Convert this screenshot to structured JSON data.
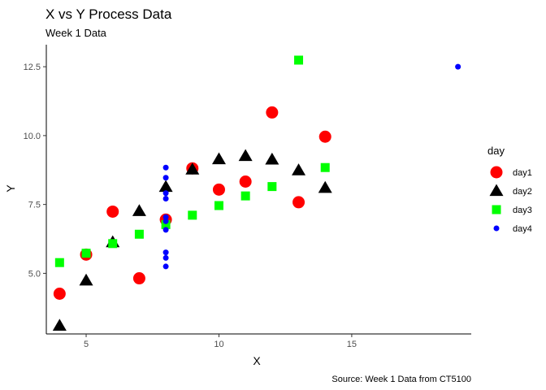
{
  "chart_data": {
    "type": "scatter",
    "title": "X vs Y Process Data",
    "subtitle": "Week 1 Data",
    "caption": "Source: Week 1 Data from CT5100",
    "xlabel": "X",
    "ylabel": "Y",
    "xlim": [
      3.5,
      19.5
    ],
    "ylim": [
      2.8,
      13.3
    ],
    "xticks": [
      5,
      10,
      15
    ],
    "yticks": [
      5.0,
      7.5,
      10.0,
      12.5
    ],
    "xtick_labels": [
      "5",
      "10",
      "15"
    ],
    "ytick_labels": [
      "5.0",
      "7.5",
      "10.0",
      "12.5"
    ],
    "grid": false,
    "legend": {
      "title": "day",
      "position": "right"
    },
    "series": [
      {
        "name": "day1",
        "shape": "circle",
        "color": "#ff0000",
        "x": [
          10,
          8,
          13,
          9,
          11,
          14,
          6,
          4,
          12,
          7,
          5
        ],
        "y": [
          8.04,
          6.95,
          7.58,
          8.81,
          8.33,
          9.96,
          7.24,
          4.26,
          10.84,
          4.82,
          5.68
        ]
      },
      {
        "name": "day2",
        "shape": "triangle",
        "color": "#000000",
        "x": [
          10,
          8,
          13,
          9,
          11,
          14,
          6,
          4,
          12,
          7,
          5
        ],
        "y": [
          9.14,
          8.14,
          8.74,
          8.77,
          9.26,
          8.1,
          6.13,
          3.1,
          9.13,
          7.26,
          4.74
        ]
      },
      {
        "name": "day3",
        "shape": "square",
        "color": "#00ff00",
        "x": [
          10,
          8,
          13,
          9,
          11,
          14,
          6,
          4,
          12,
          7,
          5
        ],
        "y": [
          7.46,
          6.77,
          12.74,
          7.11,
          7.81,
          8.84,
          6.08,
          5.39,
          8.15,
          6.42,
          5.73
        ]
      },
      {
        "name": "day4",
        "shape": "small-circle",
        "color": "#0000ff",
        "x": [
          8,
          8,
          8,
          8,
          8,
          8,
          8,
          19,
          8,
          8,
          8
        ],
        "y": [
          6.58,
          5.76,
          7.71,
          8.84,
          8.47,
          7.04,
          5.25,
          12.5,
          5.56,
          7.91,
          6.89
        ]
      }
    ]
  }
}
